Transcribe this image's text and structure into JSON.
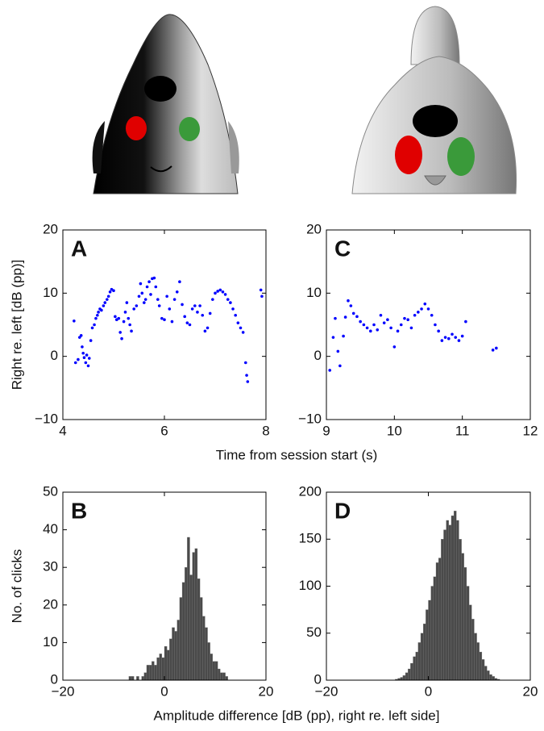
{
  "chart_data": [
    {
      "type": "scatter",
      "label": "A",
      "ylabel": "Right re. left  [dB (pp)]",
      "xlabel": "Time from session start (s)",
      "color": "#0000ff",
      "xlim": [
        4,
        8
      ],
      "ylim": [
        -10,
        20
      ],
      "xticks": [
        4,
        6,
        8
      ],
      "yticks": [
        {
          "value": -10,
          "label": "−10"
        },
        0,
        10,
        20
      ],
      "x": [
        4.22,
        4.25,
        4.3,
        4.33,
        4.36,
        4.38,
        4.4,
        4.42,
        4.45,
        4.47,
        4.5,
        4.52,
        4.55,
        4.58,
        4.62,
        4.65,
        4.68,
        4.7,
        4.73,
        4.76,
        4.8,
        4.83,
        4.87,
        4.9,
        4.93,
        4.96,
        5.0,
        5.03,
        5.06,
        5.1,
        5.13,
        5.16,
        5.2,
        5.23,
        5.26,
        5.29,
        5.32,
        5.35,
        5.4,
        5.45,
        5.5,
        5.53,
        5.56,
        5.6,
        5.63,
        5.66,
        5.7,
        5.73,
        5.76,
        5.8,
        5.83,
        5.87,
        5.9,
        5.95,
        6.0,
        6.05,
        6.1,
        6.15,
        6.2,
        6.25,
        6.3,
        6.35,
        6.4,
        6.45,
        6.5,
        6.55,
        6.6,
        6.65,
        6.7,
        6.75,
        6.8,
        6.85,
        6.9,
        6.95,
        7.0,
        7.05,
        7.1,
        7.15,
        7.2,
        7.25,
        7.3,
        7.35,
        7.4,
        7.45,
        7.5,
        7.55,
        7.6,
        7.62,
        7.64,
        7.9,
        7.92
      ],
      "values": [
        5.6,
        -1,
        -0.5,
        3,
        3.3,
        1.5,
        0.5,
        -0.2,
        -1,
        0.2,
        -1.5,
        -0.3,
        2.5,
        4.5,
        5,
        6,
        6.5,
        7,
        7.5,
        7.3,
        8,
        8.5,
        9,
        9.5,
        10.2,
        10.6,
        10.4,
        6.3,
        5.8,
        6,
        3.8,
        2.8,
        5.5,
        7,
        8.5,
        6,
        5,
        4,
        7.5,
        8,
        9.5,
        11.5,
        10,
        8.5,
        9,
        11,
        11.8,
        9.8,
        12.3,
        12.4,
        11,
        9,
        8,
        6,
        5.8,
        9.5,
        7.5,
        5.5,
        9,
        10.2,
        11.8,
        8.2,
        6.3,
        5.3,
        5,
        7.5,
        8,
        7,
        8,
        6.5,
        4,
        4.5,
        6.8,
        9,
        10,
        10.3,
        10.5,
        10.2,
        9.8,
        9,
        8.5,
        7.5,
        6.5,
        5.3,
        4.5,
        3.8,
        -1,
        -3,
        -4,
        10.5,
        9.5
      ]
    },
    {
      "type": "scatter",
      "label": "C",
      "color": "#0000ff",
      "xlim": [
        9,
        12
      ],
      "ylim": [
        -10,
        20
      ],
      "xticks": [
        9,
        10,
        11,
        12
      ],
      "yticks": [
        {
          "value": -10,
          "label": "−10"
        },
        0,
        10,
        20
      ],
      "x": [
        9.05,
        9.1,
        9.13,
        9.17,
        9.2,
        9.25,
        9.28,
        9.32,
        9.36,
        9.4,
        9.45,
        9.5,
        9.55,
        9.6,
        9.65,
        9.7,
        9.75,
        9.8,
        9.85,
        9.9,
        9.95,
        10.0,
        10.05,
        10.1,
        10.15,
        10.2,
        10.25,
        10.3,
        10.35,
        10.4,
        10.45,
        10.5,
        10.55,
        10.6,
        10.65,
        10.7,
        10.75,
        10.8,
        10.85,
        10.9,
        10.95,
        11.0,
        11.05,
        11.45,
        11.5
      ],
      "values": [
        -2.2,
        3,
        6,
        0.8,
        -1.5,
        3.2,
        6.2,
        8.8,
        8,
        6.8,
        6.3,
        5.5,
        5,
        4.5,
        4,
        5,
        4.2,
        6.5,
        5.3,
        5.8,
        4.5,
        1.5,
        4,
        5,
        6,
        5.8,
        4.5,
        6.5,
        7,
        7.5,
        8.3,
        7.5,
        6.5,
        5,
        4,
        2.5,
        3,
        2.8,
        3.5,
        3,
        2.5,
        3.2,
        5.5,
        1,
        1.3
      ]
    },
    {
      "type": "histogram",
      "label": "B",
      "ylabel": "No. of clicks",
      "xlabel": "Amplitude difference [dB (pp), right re. left side]",
      "color": "#4a4a4a",
      "xlim": [
        -20,
        20
      ],
      "ylim": [
        0,
        50
      ],
      "xticks": [
        {
          "value": -20,
          "label": "−20"
        },
        0,
        20
      ],
      "yticks": [
        0,
        10,
        20,
        30,
        40,
        50
      ],
      "bins": [
        -10,
        -9.5,
        -9,
        -8.5,
        -8,
        -7.5,
        -7,
        -6.5,
        -6,
        -5.5,
        -5,
        -4.5,
        -4,
        -3.5,
        -3,
        -2.5,
        -2,
        -1.5,
        -1,
        -0.5,
        0,
        0.5,
        1,
        1.5,
        2,
        2.5,
        3,
        3.5,
        4,
        4.5,
        5,
        5.5,
        6,
        6.5,
        7,
        7.5,
        8,
        8.5,
        9,
        9.5,
        10,
        10.5,
        11,
        11.5,
        12,
        12.5,
        13,
        13.5,
        14,
        14.5,
        15
      ],
      "values": [
        0,
        0,
        0,
        0,
        0,
        0,
        1,
        1,
        0,
        1,
        0,
        1,
        2,
        4,
        4,
        5,
        4,
        6,
        7,
        6,
        9,
        8,
        11,
        14,
        13,
        16,
        22,
        26,
        30,
        38,
        28,
        34,
        35,
        27,
        22,
        17,
        14,
        10,
        7,
        5,
        5,
        3,
        2,
        2,
        1,
        0,
        0,
        0,
        0,
        0
      ]
    },
    {
      "type": "histogram",
      "label": "D",
      "color": "#4a4a4a",
      "xlim": [
        -20,
        20
      ],
      "ylim": [
        0,
        200
      ],
      "xticks": [
        {
          "value": -20,
          "label": "−20"
        },
        0,
        20
      ],
      "yticks": [
        0,
        50,
        100,
        150,
        200
      ],
      "bins": [
        -10,
        -9.5,
        -9,
        -8.5,
        -8,
        -7.5,
        -7,
        -6.5,
        -6,
        -5.5,
        -5,
        -4.5,
        -4,
        -3.5,
        -3,
        -2.5,
        -2,
        -1.5,
        -1,
        -0.5,
        0,
        0.5,
        1,
        1.5,
        2,
        2.5,
        3,
        3.5,
        4,
        4.5,
        5,
        5.5,
        6,
        6.5,
        7,
        7.5,
        8,
        8.5,
        9,
        9.5,
        10,
        10.5,
        11,
        11.5,
        12,
        12.5,
        13,
        13.5,
        14,
        14.5,
        15
      ],
      "values": [
        0,
        0,
        0,
        0,
        0,
        0,
        0,
        1,
        2,
        3,
        5,
        8,
        12,
        18,
        25,
        30,
        40,
        50,
        60,
        75,
        85,
        100,
        110,
        125,
        130,
        150,
        160,
        170,
        165,
        175,
        180,
        170,
        150,
        135,
        120,
        100,
        80,
        65,
        50,
        40,
        30,
        22,
        15,
        10,
        6,
        4,
        2,
        1,
        0,
        0
      ]
    }
  ]
}
